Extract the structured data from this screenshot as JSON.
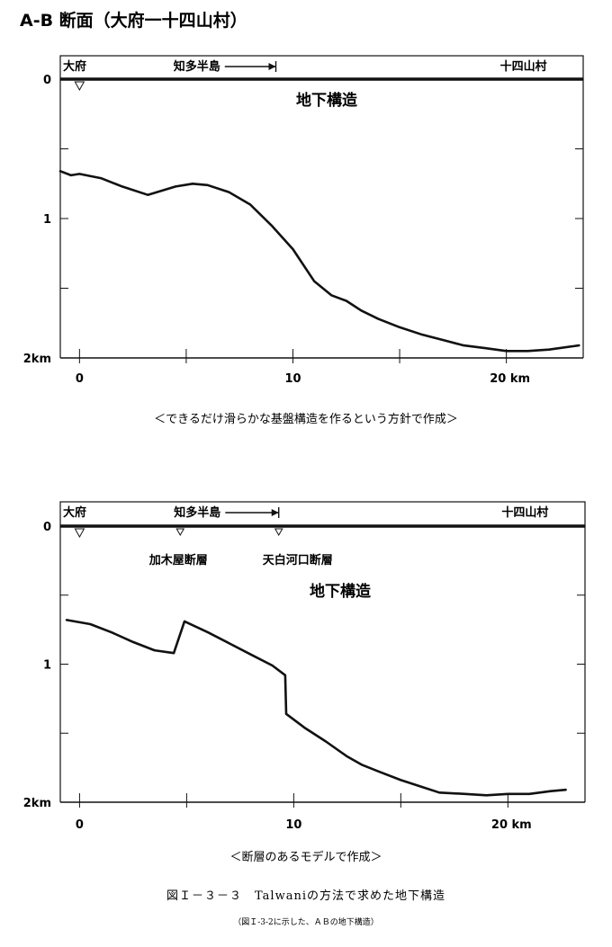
{
  "page_title": "A-B 断面（大府一十四山村）",
  "chart_data": [
    {
      "type": "line",
      "title": "",
      "xlabel": "",
      "ylabel": "",
      "x_ticks": [
        {
          "value": 0,
          "label": "0"
        },
        {
          "value": 10,
          "label": "10"
        },
        {
          "value": 20,
          "label": "20 km"
        }
      ],
      "y_ticks": [
        {
          "value": 0,
          "label": "0"
        },
        {
          "value": 1,
          "label": "1"
        },
        {
          "value": 2,
          "label": "2km"
        }
      ],
      "xlim": [
        -0.9,
        23.6
      ],
      "ylim": [
        0,
        2
      ],
      "y_inverted": true,
      "places": [
        {
          "label": "大府",
          "x": 0,
          "marker": true
        },
        {
          "label": "知多半島",
          "x": 5.5,
          "arrow_to": 9.2
        },
        {
          "label": "十四山村",
          "x": 20.8
        }
      ],
      "fault_labels": [],
      "annotation": "地下構造",
      "series": [
        {
          "x": [
            -0.9,
            -0.4,
            0,
            1,
            2,
            3.2,
            4.5,
            5.3,
            6,
            7,
            8,
            9,
            10,
            11,
            11.8,
            12.5,
            13.2,
            14,
            15,
            16,
            17,
            18,
            19,
            20,
            21,
            22,
            23.4
          ],
          "y": [
            0.66,
            0.69,
            0.68,
            0.71,
            0.77,
            0.83,
            0.77,
            0.75,
            0.76,
            0.81,
            0.9,
            1.05,
            1.22,
            1.45,
            1.55,
            1.59,
            1.66,
            1.72,
            1.78,
            1.83,
            1.87,
            1.91,
            1.93,
            1.95,
            1.95,
            1.94,
            1.91
          ]
        }
      ],
      "caption": "＜できるだけ滑らかな基盤構造を作るという方針で作成＞"
    },
    {
      "type": "line",
      "title": "",
      "xlabel": "",
      "ylabel": "",
      "x_ticks": [
        {
          "value": 0,
          "label": "0"
        },
        {
          "value": 10,
          "label": "10"
        },
        {
          "value": 20,
          "label": "20 km"
        }
      ],
      "y_ticks": [
        {
          "value": 0,
          "label": "0"
        },
        {
          "value": 1,
          "label": "1"
        },
        {
          "value": 2,
          "label": "2km"
        }
      ],
      "xlim": [
        -0.9,
        23.6
      ],
      "ylim": [
        0,
        2
      ],
      "y_inverted": true,
      "places": [
        {
          "label": "大府",
          "x": 0,
          "marker": true
        },
        {
          "label": "知多半島",
          "x": 5.5,
          "arrow_to": 9.3
        },
        {
          "label": "十四山村",
          "x": 20.8
        }
      ],
      "fault_labels": [
        {
          "label": "加木屋断層",
          "x": 4.7
        },
        {
          "label": "天白河口断層",
          "x": 9.3
        }
      ],
      "annotation": "地下構造",
      "series": [
        {
          "x": [
            -0.6,
            0.5,
            1.5,
            2.5,
            3.5,
            4.4,
            4.9,
            6,
            7,
            8,
            9,
            9.6,
            9.65,
            10.5,
            11.5,
            12.5,
            13.2,
            14,
            15,
            16,
            16.8,
            18,
            19,
            20,
            21,
            22,
            22.7
          ],
          "y": [
            0.68,
            0.71,
            0.77,
            0.84,
            0.9,
            0.92,
            0.69,
            0.77,
            0.85,
            0.93,
            1.01,
            1.08,
            1.36,
            1.46,
            1.56,
            1.67,
            1.73,
            1.78,
            1.84,
            1.89,
            1.93,
            1.94,
            1.95,
            1.94,
            1.94,
            1.92,
            1.91
          ]
        }
      ],
      "caption": "＜断層のあるモデルで作成＞"
    }
  ],
  "figure_caption": "図Ｉ－３－３　Talwaniの方法で求めた地下構造",
  "figure_note": "（図Ｉ-3-2に示した、ＡＢの地下構造）"
}
